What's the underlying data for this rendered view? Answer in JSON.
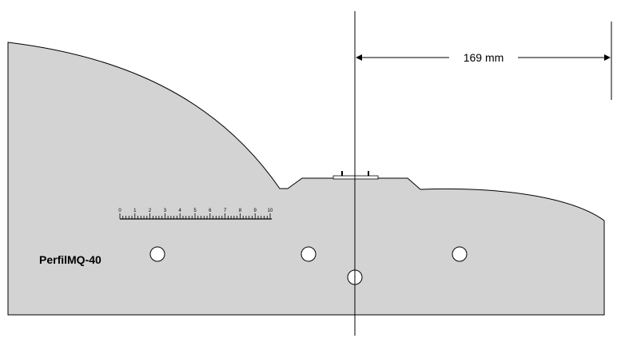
{
  "profile": {
    "name": "PerfilMQ-40",
    "fill": "#d3d3d3",
    "stroke": "#000000"
  },
  "dimension": {
    "label": "169 mm"
  },
  "scale": {
    "labels": [
      "0",
      "1",
      "2",
      "3",
      "4",
      "5",
      "6",
      "7",
      "8",
      "9",
      "10"
    ]
  },
  "holes": {
    "count": 4
  }
}
